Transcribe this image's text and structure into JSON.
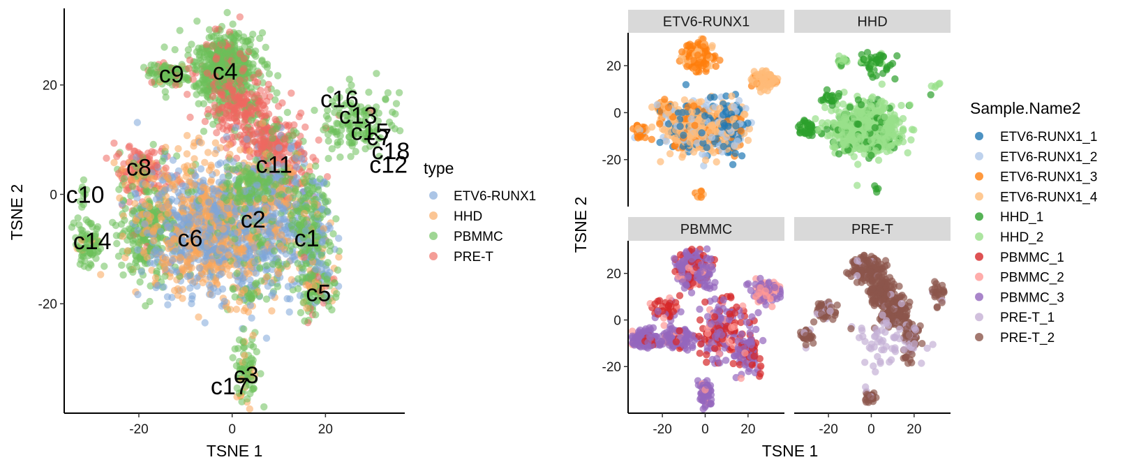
{
  "chart_data": [
    {
      "type": "scatter",
      "xlabel": "TSNE 1",
      "ylabel": "TSNE 2",
      "xlim": [
        -36,
        37
      ],
      "ylim": [
        -40,
        34
      ],
      "xticks": [
        -20,
        0,
        20
      ],
      "yticks": [
        -20,
        0,
        20
      ],
      "grid": false,
      "legend": {
        "title": "type",
        "position": "right",
        "entries": [
          {
            "label": "ETV6-RUNX1",
            "color": "#7ea6d8"
          },
          {
            "label": "HHD",
            "color": "#f9a65a"
          },
          {
            "label": "PBMMC",
            "color": "#6cc05a"
          },
          {
            "label": "PRE-T",
            "color": "#ee6860"
          }
        ]
      },
      "cluster_labels": [
        {
          "text": "c16",
          "x": 23,
          "y": 17.5
        },
        {
          "text": "c13",
          "x": 27,
          "y": 14.5
        },
        {
          "text": "c15",
          "x": 29.5,
          "y": 11.5
        },
        {
          "text": "c7",
          "x": 31.5,
          "y": 10.5
        },
        {
          "text": "c18",
          "x": 34,
          "y": 8
        },
        {
          "text": "c12",
          "x": 33.5,
          "y": 5.5
        },
        {
          "text": "c4",
          "x": -1.5,
          "y": 22.5
        },
        {
          "text": "c9",
          "x": -13,
          "y": 22
        },
        {
          "text": "c11",
          "x": 9,
          "y": 5.5
        },
        {
          "text": "c8",
          "x": -20,
          "y": 5
        },
        {
          "text": "c10",
          "x": -31.5,
          "y": 0
        },
        {
          "text": "c2",
          "x": 4.5,
          "y": -4.5
        },
        {
          "text": "c6",
          "x": -9,
          "y": -8
        },
        {
          "text": "c14",
          "x": -30,
          "y": -8.5
        },
        {
          "text": "c1",
          "x": 16,
          "y": -8
        },
        {
          "text": "c5",
          "x": 18.5,
          "y": -18
        },
        {
          "text": "c3",
          "x": 3,
          "y": -33
        },
        {
          "text": "c17",
          "x": -0.5,
          "y": -35
        }
      ],
      "clusters": [
        {
          "cx": -2,
          "cy": 23,
          "sx": 3.6,
          "sy": 3.4,
          "n": 600,
          "mix": [
            0,
            0,
            0.85,
            0.15
          ]
        },
        {
          "cx": -14,
          "cy": 22,
          "sx": 2.2,
          "sy": 1.0,
          "n": 100,
          "mix": [
            0,
            0.05,
            0.85,
            0.1
          ]
        },
        {
          "cx": 2,
          "cy": 16,
          "sx": 3.5,
          "sy": 2.5,
          "n": 180,
          "mix": [
            0,
            0,
            0.15,
            0.85
          ]
        },
        {
          "cx": 8,
          "cy": 10,
          "sx": 3.5,
          "sy": 2.5,
          "n": 200,
          "mix": [
            0.05,
            0,
            0.15,
            0.8
          ]
        },
        {
          "cx": 11,
          "cy": 3,
          "sx": 3,
          "sy": 3.5,
          "n": 180,
          "mix": [
            0.15,
            0.05,
            0.2,
            0.6
          ]
        },
        {
          "cx": 27,
          "cy": 13,
          "sx": 4,
          "sy": 3.2,
          "n": 140,
          "mix": [
            0,
            0,
            0.95,
            0.05
          ]
        },
        {
          "cx": -19,
          "cy": 4,
          "sx": 3,
          "sy": 2.5,
          "n": 180,
          "mix": [
            0.1,
            0.15,
            0.15,
            0.6
          ]
        },
        {
          "cx": -18,
          "cy": -7,
          "sx": 3,
          "sy": 4.5,
          "n": 280,
          "mix": [
            0.05,
            0.05,
            0.85,
            0.05
          ]
        },
        {
          "cx": -31,
          "cy": -9,
          "sx": 1.5,
          "sy": 2,
          "n": 80,
          "mix": [
            0,
            0.05,
            0.95,
            0
          ]
        },
        {
          "cx": -32,
          "cy": 0,
          "sx": 0.5,
          "sy": 1.5,
          "n": 10,
          "mix": [
            0,
            0,
            1,
            0
          ]
        },
        {
          "cx": -5,
          "cy": -6,
          "sx": 6.5,
          "sy": 6,
          "n": 1100,
          "mix": [
            0.45,
            0.5,
            0.05,
            0
          ]
        },
        {
          "cx": 7,
          "cy": -6,
          "sx": 5,
          "sy": 6,
          "n": 500,
          "mix": [
            0.5,
            0.3,
            0.2,
            0
          ]
        },
        {
          "cx": 4,
          "cy": 2,
          "sx": 3,
          "sy": 2,
          "n": 100,
          "mix": [
            0.1,
            0.1,
            0.8,
            0
          ]
        },
        {
          "cx": 17,
          "cy": -7,
          "sx": 2,
          "sy": 5,
          "n": 250,
          "mix": [
            0.3,
            0.05,
            0.65,
            0
          ]
        },
        {
          "cx": 18,
          "cy": -17,
          "sx": 2,
          "sy": 2.5,
          "n": 120,
          "mix": [
            0.1,
            0.2,
            0.6,
            0.1
          ]
        },
        {
          "cx": 4,
          "cy": -18,
          "sx": 2,
          "sy": 1.5,
          "n": 40,
          "mix": [
            0.2,
            0.2,
            0.6,
            0
          ]
        },
        {
          "cx": 3,
          "cy": -32,
          "sx": 1.2,
          "sy": 3,
          "n": 80,
          "mix": [
            0,
            0.25,
            0.75,
            0
          ]
        }
      ]
    },
    {
      "type": "scatter",
      "facet_by": "type",
      "xlabel": "TSNE 1",
      "ylabel": "TSNE 2",
      "xlim": [
        -36,
        37
      ],
      "ylim": [
        -40,
        34
      ],
      "xticks": [
        -20,
        0,
        20
      ],
      "yticks": [
        -20,
        0,
        20
      ],
      "grid": false,
      "legend": {
        "title": "Sample.Name2",
        "position": "right",
        "entries": [
          {
            "label": "ETV6-RUNX1_1",
            "color": "#1f77b4"
          },
          {
            "label": "ETV6-RUNX1_2",
            "color": "#aec7e8"
          },
          {
            "label": "ETV6-RUNX1_3",
            "color": "#ff7f0e"
          },
          {
            "label": "ETV6-RUNX1_4",
            "color": "#ffbb78"
          },
          {
            "label": "HHD_1",
            "color": "#2ca02c"
          },
          {
            "label": "HHD_2",
            "color": "#98df8a"
          },
          {
            "label": "PBMMC_1",
            "color": "#d62728"
          },
          {
            "label": "PBMMC_2",
            "color": "#ff9896"
          },
          {
            "label": "PBMMC_3",
            "color": "#9467bd"
          },
          {
            "label": "PRE-T_1",
            "color": "#c5b0d5"
          },
          {
            "label": "PRE-T_2",
            "color": "#8c564b"
          }
        ]
      },
      "facets": [
        {
          "title": "ETV6-RUNX1",
          "clusters": [
            {
              "cx": -5,
              "cy": -7,
              "sx": 7,
              "sy": 5,
              "n": 550,
              "mix": [
                0.15,
                0.15,
                0.15,
                0.55
              ]
            },
            {
              "cx": 12,
              "cy": -6,
              "sx": 3.5,
              "sy": 5,
              "n": 200,
              "mix": [
                0.3,
                0.2,
                0.1,
                0.4
              ]
            },
            {
              "cx": -30,
              "cy": -8,
              "sx": 1.5,
              "sy": 1.5,
              "n": 40,
              "mix": [
                0,
                0.1,
                0.7,
                0.2
              ]
            },
            {
              "cx": -3,
              "cy": 24,
              "sx": 3.5,
              "sy": 3,
              "n": 160,
              "mix": [
                0,
                0,
                0.7,
                0.3
              ]
            },
            {
              "cx": 27,
              "cy": 14,
              "sx": 3,
              "sy": 2,
              "n": 80,
              "mix": [
                0,
                0,
                0.1,
                0.9
              ]
            },
            {
              "cx": -19,
              "cy": 2,
              "sx": 2,
              "sy": 2,
              "n": 40,
              "mix": [
                0.1,
                0.2,
                0.3,
                0.4
              ]
            },
            {
              "cx": -2,
              "cy": -35,
              "sx": 1,
              "sy": 0.7,
              "n": 12,
              "mix": [
                0,
                0,
                0.5,
                0.5
              ]
            }
          ]
        },
        {
          "title": "HHD",
          "clusters": [
            {
              "cx": -2,
              "cy": -7,
              "sx": 8,
              "sy": 5,
              "n": 650,
              "mix": [
                0,
                0,
                0,
                0,
                0.15,
                0.85
              ]
            },
            {
              "cx": -30,
              "cy": -7,
              "sx": 1.8,
              "sy": 1.5,
              "n": 60,
              "mix": [
                0,
                0,
                0,
                0,
                0.9,
                0.1
              ]
            },
            {
              "cx": 2,
              "cy": 22,
              "sx": 4,
              "sy": 3,
              "n": 50,
              "mix": [
                0,
                0,
                0,
                0,
                0.8,
                0.2
              ]
            },
            {
              "cx": -14,
              "cy": 22,
              "sx": 1.5,
              "sy": 1,
              "n": 15,
              "mix": [
                0,
                0,
                0,
                0,
                0.5,
                0.5
              ]
            },
            {
              "cx": -19,
              "cy": 6,
              "sx": 2,
              "sy": 1.5,
              "n": 30,
              "mix": [
                0,
                0,
                0,
                0,
                0.8,
                0.2
              ]
            },
            {
              "cx": 30,
              "cy": 11,
              "sx": 2,
              "sy": 1,
              "n": 6,
              "mix": [
                0,
                0,
                0,
                0,
                0.3,
                0.7
              ]
            },
            {
              "cx": 2,
              "cy": -33,
              "sx": 1,
              "sy": 1,
              "n": 4,
              "mix": [
                0,
                0,
                0,
                0,
                1,
                0
              ]
            }
          ]
        },
        {
          "title": "PBMMC",
          "clusters": [
            {
              "cx": -5,
              "cy": 22,
              "sx": 4,
              "sy": 3.5,
              "n": 300,
              "mix": [
                0,
                0,
                0,
                0,
                0,
                0,
                0.2,
                0.1,
                0.7
              ]
            },
            {
              "cx": -28,
              "cy": -8,
              "sx": 3,
              "sy": 2,
              "n": 110,
              "mix": [
                0,
                0,
                0,
                0,
                0,
                0,
                0.05,
                0.05,
                0.9
              ]
            },
            {
              "cx": -12,
              "cy": -8,
              "sx": 4,
              "sy": 2.5,
              "n": 120,
              "mix": [
                0,
                0,
                0,
                0,
                0,
                0,
                0.1,
                0.1,
                0.8
              ]
            },
            {
              "cx": 8,
              "cy": -4,
              "sx": 5,
              "sy": 6,
              "n": 200,
              "mix": [
                0,
                0,
                0,
                0,
                0,
                0,
                0.4,
                0.15,
                0.45
              ]
            },
            {
              "cx": 20,
              "cy": -14,
              "sx": 2.5,
              "sy": 4,
              "n": 110,
              "mix": [
                0,
                0,
                0,
                0,
                0,
                0,
                0.3,
                0.1,
                0.6
              ]
            },
            {
              "cx": 28,
              "cy": 12,
              "sx": 3.5,
              "sy": 3,
              "n": 80,
              "mix": [
                0,
                0,
                0,
                0,
                0,
                0,
                0,
                0.3,
                0.7
              ]
            },
            {
              "cx": 0,
              "cy": -32,
              "sx": 1.5,
              "sy": 3,
              "n": 60,
              "mix": [
                0,
                0,
                0,
                0,
                0,
                0,
                0,
                0.1,
                0.9
              ]
            },
            {
              "cx": -18,
              "cy": 5,
              "sx": 3,
              "sy": 2.5,
              "n": 40,
              "mix": [
                0,
                0,
                0,
                0,
                0,
                0,
                0.5,
                0.2,
                0.3
              ]
            }
          ]
        },
        {
          "title": "PRE-T",
          "clusters": [
            {
              "cx": -2,
              "cy": 22,
              "sx": 3.5,
              "sy": 2.5,
              "n": 150,
              "mix": [
                0,
                0,
                0,
                0,
                0,
                0,
                0,
                0,
                0,
                0.1,
                0.9
              ]
            },
            {
              "cx": 5,
              "cy": 12,
              "sx": 3,
              "sy": 3,
              "n": 120,
              "mix": [
                0,
                0,
                0,
                0,
                0,
                0,
                0,
                0,
                0,
                0.05,
                0.95
              ]
            },
            {
              "cx": 11,
              "cy": 3,
              "sx": 3,
              "sy": 3,
              "n": 130,
              "mix": [
                0,
                0,
                0,
                0,
                0,
                0,
                0,
                0,
                0,
                0.05,
                0.95
              ]
            },
            {
              "cx": 18,
              "cy": -9,
              "sx": 2,
              "sy": 4,
              "n": 70,
              "mix": [
                0,
                0,
                0,
                0,
                0,
                0,
                0,
                0,
                0,
                0.15,
                0.85
              ]
            },
            {
              "cx": -22,
              "cy": 4,
              "sx": 3,
              "sy": 2,
              "n": 60,
              "mix": [
                0,
                0,
                0,
                0,
                0,
                0,
                0,
                0,
                0,
                0.2,
                0.8
              ]
            },
            {
              "cx": -30,
              "cy": -7,
              "sx": 1.5,
              "sy": 1.5,
              "n": 30,
              "mix": [
                0,
                0,
                0,
                0,
                0,
                0,
                0,
                0,
                0,
                0.2,
                0.8
              ]
            },
            {
              "cx": 6,
              "cy": -8,
              "sx": 8,
              "sy": 6,
              "n": 60,
              "mix": [
                0,
                0,
                0,
                0,
                0,
                0,
                0,
                0,
                0,
                0.95,
                0.05
              ]
            },
            {
              "cx": 31,
              "cy": 11,
              "sx": 2,
              "sy": 3,
              "n": 25,
              "mix": [
                0,
                0,
                0,
                0,
                0,
                0,
                0,
                0,
                0,
                0.1,
                0.9
              ]
            },
            {
              "cx": -1,
              "cy": -33,
              "sx": 1.5,
              "sy": 1.5,
              "n": 25,
              "mix": [
                0,
                0,
                0,
                0,
                0,
                0,
                0,
                0,
                0,
                0.1,
                0.9
              ]
            }
          ]
        }
      ]
    }
  ]
}
